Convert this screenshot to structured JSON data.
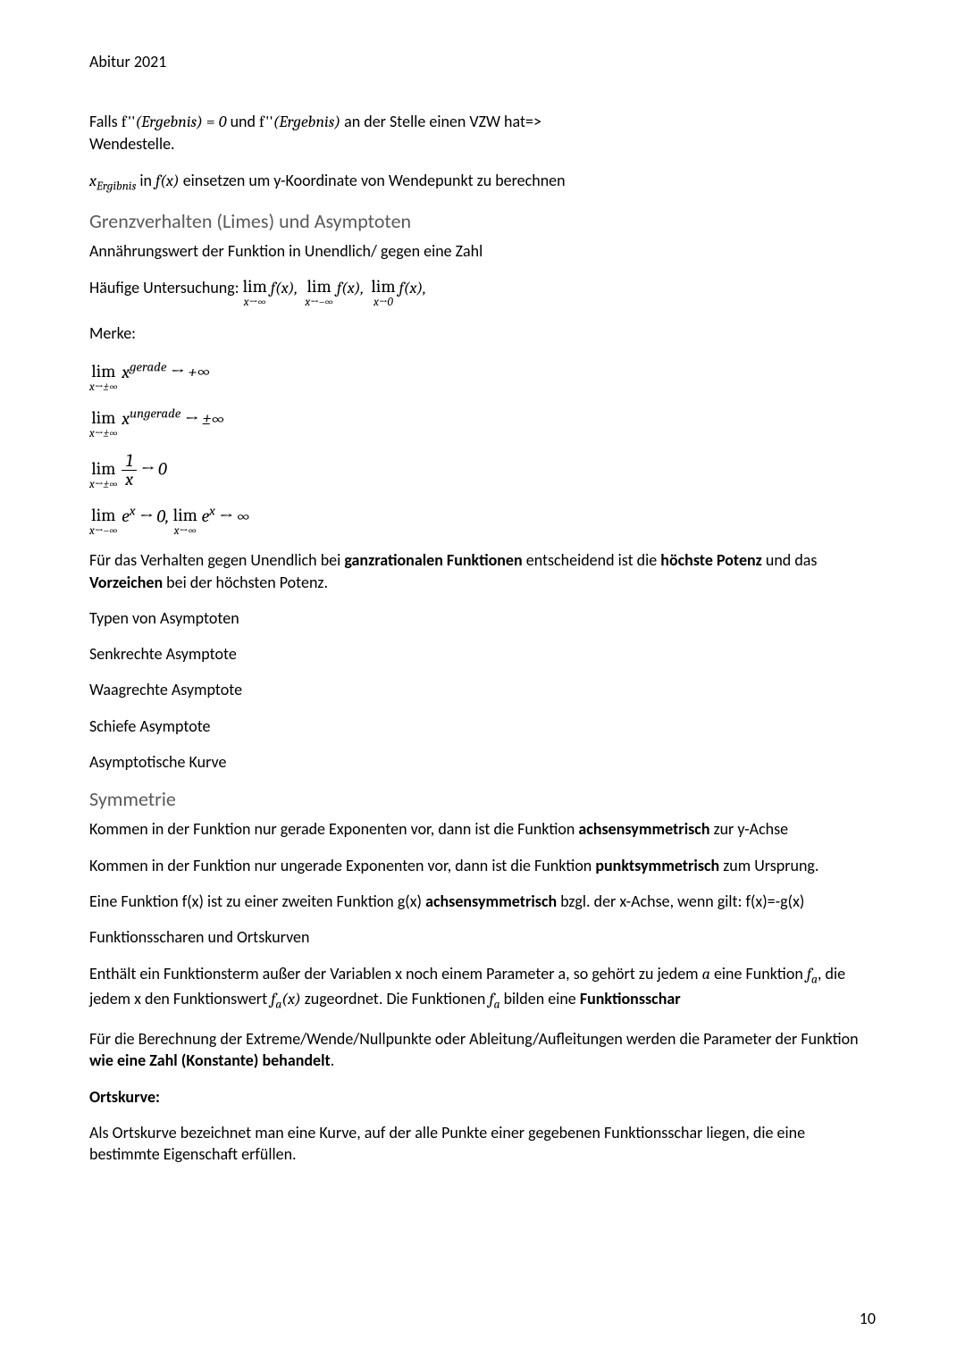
{
  "header": "Abitur 2021",
  "page_number": "10",
  "block1": {
    "line1_pre": "Falls ",
    "line1_math1": "f''(Ergebnis) = 0",
    "line1_mid": " und ",
    "line1_math2": "f''(Ergebnis)",
    "line1_post": " an der Stelle einen VZW hat=>",
    "line2": "Wendestelle."
  },
  "block2": {
    "math1_sub": "x",
    "math1_subscript": "Ergibnis",
    "mid1": " in ",
    "math2": "f(x)",
    "post": " einsetzen um y-Koordinate von Wendepunkt zu berechnen"
  },
  "h_grenz": "Grenzverhalten (Limes) und Asymptoten",
  "grenz_intro": "Annährungswert der Funktion in Unendlich/ gegen eine Zahl",
  "haeufig_label": "Häufige Untersuchung: ",
  "lim1": {
    "top": "lim",
    "bot": "x→∞",
    "fx": "f(x),"
  },
  "lim2": {
    "top": "lim",
    "bot": "x→−∞",
    "fx": "f(x),"
  },
  "lim3": {
    "top": "lim",
    "bot": "x→0",
    "fx": "f(x),"
  },
  "merke": "Merke:",
  "m1": {
    "limtop": "lim",
    "limbot": "x→±∞",
    "body": "x",
    "exp": "gerade",
    "arrow": " →  +∞"
  },
  "m2": {
    "limtop": "lim",
    "limbot": "x→±∞",
    "body": "x",
    "exp": "ungerade",
    "arrow": " →  ±∞"
  },
  "m3": {
    "limtop": "lim",
    "limbot": "x→±∞",
    "num": "1",
    "den": "x",
    "arrow": " →  0"
  },
  "m4a": {
    "limtop": "lim",
    "limbot": "x→−∞",
    "body": "e",
    "exp": "x",
    "arrow": " →  0, "
  },
  "m4b": {
    "limtop": "lim",
    "limbot": "x→∞",
    "body": "e",
    "exp": "x",
    "arrow": " →  ∞"
  },
  "ganzrat_pre": "Für das Verhalten gegen Unendlich bei ",
  "ganzrat_b1": "ganzrationalen Funktionen",
  "ganzrat_mid": " entscheidend ist die ",
  "ganzrat_b2": "höchste Potenz",
  "ganzrat_mid2": " und das ",
  "ganzrat_b3": "Vorzeichen",
  "ganzrat_post": " bei der höchsten Potenz.",
  "typen_h": "Typen von Asymptoten",
  "typen": [
    "Senkrechte Asymptote",
    "Waagrechte Asymptote",
    "Schiefe Asymptote",
    "Asymptotische Kurve"
  ],
  "h_symm": "Symmetrie",
  "symm1_pre": "Kommen in der Funktion nur gerade Exponenten vor, dann ist die Funktion ",
  "symm1_b": "achsensymmetrisch",
  "symm1_post": " zur y-Achse",
  "symm2_pre": "Kommen in der Funktion nur ungerade Exponenten vor, dann ist die Funktion ",
  "symm2_b": "punktsymmetrisch",
  "symm2_post": " zum Ursprung.",
  "symm3_pre": "Eine Funktion f(x) ist zu einer zweiten Funktion g(x) ",
  "symm3_b": "achsensymmetrisch",
  "symm3_post": " bzgl. der x-Achse, wenn gilt: f(x)=-g(x)",
  "h_schar": "Funktionsscharen und Ortskurven",
  "schar1_pre": "Enthält ein Funktionsterm außer der Variablen x noch einem Parameter a, so gehört zu jedem ",
  "schar1_a": "a",
  "schar1_mid1": " eine Funktion ",
  "schar1_fa": "f",
  "schar1_fa_sub": "a",
  "schar1_mid2": ", die jedem x den Funktionswert ",
  "schar1_fax": "f",
  "schar1_fax_sub": "a",
  "schar1_fax_arg": "(x)",
  "schar1_mid3": " zugeordnet. Die Funktionen ",
  "schar1_fa2": "f",
  "schar1_fa2_sub": "a",
  "schar1_post": " bilden eine ",
  "schar1_b": "Funktionsschar",
  "schar2_pre": "Für die Berechnung der Extreme/Wende/Nullpunkte oder Ableitung/Aufleitungen werden die Parameter der Funktion ",
  "schar2_b": "wie eine Zahl (Konstante) behandelt",
  "schar2_post": ".",
  "ortskurve_h": "Ortskurve:",
  "ortskurve_body": "Als Ortskurve bezeichnet man eine Kurve, auf der alle Punkte einer gegebenen Funktionsschar liegen, die eine bestimmte Eigenschaft erfüllen."
}
